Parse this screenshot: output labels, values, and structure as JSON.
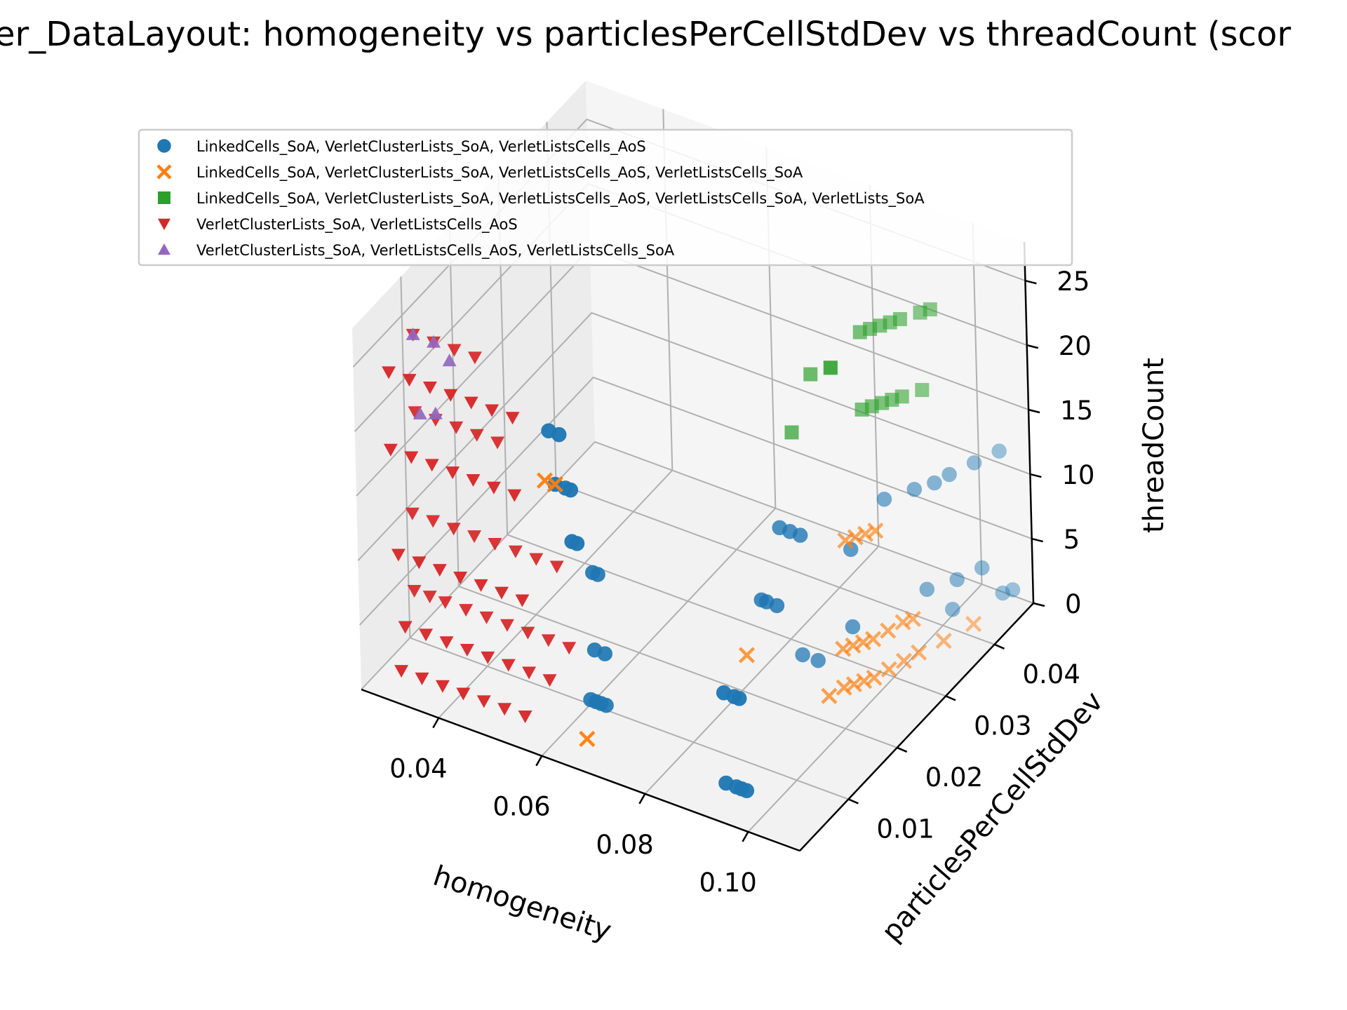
{
  "chart_data": {
    "type": "scatter",
    "projection": "3d",
    "title": "er_DataLayout: homogeneity vs particlesPerCellStdDev vs threadCount (scor",
    "xlabel": "homogeneity",
    "ylabel": "particlesPerCellStdDev",
    "zlabel": "threadCount",
    "xlim": [
      0.025,
      0.11
    ],
    "ylim": [
      0.0,
      0.048
    ],
    "zlim": [
      0,
      28
    ],
    "xticks": [
      "0.04",
      "0.06",
      "0.08",
      "0.10"
    ],
    "yticks": [
      "0.01",
      "0.02",
      "0.03",
      "0.04"
    ],
    "zticks": [
      "0",
      "5",
      "10",
      "15",
      "20",
      "25"
    ],
    "grid": true,
    "legend_position": "top",
    "series": [
      {
        "name": "LinkedCells_SoA, VerletClusterLists_SoA, VerletListsCells_AoS",
        "marker": "circle",
        "color": "#1f77b4",
        "points": [
          [
            0.092,
            0.004,
            1
          ],
          [
            0.094,
            0.004,
            1
          ],
          [
            0.095,
            0.004,
            1
          ],
          [
            0.096,
            0.004,
            1
          ],
          [
            0.092,
            0.004,
            8
          ],
          [
            0.094,
            0.004,
            8
          ],
          [
            0.095,
            0.004,
            8
          ],
          [
            0.092,
            0.012,
            12
          ],
          [
            0.093,
            0.012,
            12
          ],
          [
            0.095,
            0.012,
            12
          ],
          [
            0.092,
            0.016,
            16
          ],
          [
            0.094,
            0.016,
            16
          ],
          [
            0.096,
            0.016,
            16
          ],
          [
            0.063,
            0.007,
            2
          ],
          [
            0.064,
            0.007,
            2
          ],
          [
            0.065,
            0.007,
            2
          ],
          [
            0.066,
            0.007,
            2
          ],
          [
            0.064,
            0.007,
            6
          ],
          [
            0.066,
            0.007,
            6
          ],
          [
            0.064,
            0.007,
            12
          ],
          [
            0.065,
            0.007,
            12
          ],
          [
            0.06,
            0.003,
            24
          ],
          [
            0.062,
            0.003,
            24
          ],
          [
            0.061,
            0.003,
            20
          ],
          [
            0.063,
            0.003,
            20
          ],
          [
            0.064,
            0.003,
            20
          ],
          [
            0.064,
            0.003,
            16
          ],
          [
            0.065,
            0.003,
            16
          ],
          [
            0.091,
            0.021,
            4
          ],
          [
            0.094,
            0.021,
            4
          ],
          [
            0.098,
            0.024,
            6
          ],
          [
            0.098,
            0.024,
            12
          ],
          [
            0.096,
            0.033,
            12
          ],
          [
            0.099,
            0.036,
            12
          ],
          [
            0.101,
            0.038,
            12
          ],
          [
            0.102,
            0.04,
            12
          ],
          [
            0.104,
            0.043,
            12
          ],
          [
            0.106,
            0.046,
            12
          ],
          [
            0.1,
            0.037,
            4
          ],
          [
            0.103,
            0.04,
            4
          ],
          [
            0.105,
            0.043,
            4
          ],
          [
            0.101,
            0.041,
            1
          ],
          [
            0.106,
            0.046,
            1
          ],
          [
            0.107,
            0.047,
            1
          ]
        ]
      },
      {
        "name": "LinkedCells_SoA, VerletClusterLists_SoA, VerletListsCells_AoS, VerletListsCells_SoA",
        "marker": "x",
        "color": "#ff7f0e",
        "points": [
          [
            0.066,
            0.003,
            1
          ],
          [
            0.059,
            0.003,
            20
          ],
          [
            0.061,
            0.003,
            20
          ],
          [
            0.095,
            0.022,
            1
          ],
          [
            0.096,
            0.024,
            1
          ],
          [
            0.097,
            0.025,
            1
          ],
          [
            0.098,
            0.026,
            1
          ],
          [
            0.099,
            0.027,
            1
          ],
          [
            0.1,
            0.029,
            1
          ],
          [
            0.101,
            0.031,
            1
          ],
          [
            0.102,
            0.033,
            1
          ],
          [
            0.104,
            0.036,
            1
          ],
          [
            0.106,
            0.04,
            1
          ],
          [
            0.096,
            0.024,
            4
          ],
          [
            0.097,
            0.025,
            4
          ],
          [
            0.098,
            0.026,
            4
          ],
          [
            0.099,
            0.027,
            4
          ],
          [
            0.1,
            0.029,
            4
          ],
          [
            0.101,
            0.031,
            4
          ],
          [
            0.102,
            0.032,
            4
          ],
          [
            0.096,
            0.025,
            12
          ],
          [
            0.097,
            0.026,
            12
          ],
          [
            0.098,
            0.027,
            12
          ],
          [
            0.099,
            0.028,
            12
          ],
          [
            0.083,
            0.018,
            4
          ]
        ]
      },
      {
        "name": "LinkedCells_SoA, VerletClusterLists_SoA, VerletListsCells_AoS, VerletListsCells_SoA, VerletLists_SoA",
        "marker": "square",
        "color": "#2ca02c",
        "points": [
          [
            0.095,
            0.03,
            20
          ],
          [
            0.096,
            0.031,
            20
          ],
          [
            0.097,
            0.032,
            20
          ],
          [
            0.098,
            0.033,
            20
          ],
          [
            0.099,
            0.034,
            20
          ],
          [
            0.101,
            0.036,
            20
          ],
          [
            0.095,
            0.03,
            26
          ],
          [
            0.096,
            0.031,
            26
          ],
          [
            0.097,
            0.032,
            26
          ],
          [
            0.098,
            0.033,
            26
          ],
          [
            0.099,
            0.034,
            26
          ],
          [
            0.101,
            0.036,
            26
          ],
          [
            0.102,
            0.037,
            26
          ],
          [
            0.092,
            0.027,
            24
          ],
          [
            0.09,
            0.025,
            24
          ],
          [
            0.092,
            0.027,
            24
          ],
          [
            0.088,
            0.023,
            20
          ]
        ]
      },
      {
        "name": "VerletClusterLists_SoA, VerletListsCells_AoS",
        "marker": "triangle-down",
        "color": "#d62728",
        "points": [
          [
            0.03,
            0.003,
            1
          ],
          [
            0.034,
            0.003,
            1
          ],
          [
            0.038,
            0.003,
            1
          ],
          [
            0.042,
            0.003,
            1
          ],
          [
            0.046,
            0.003,
            1
          ],
          [
            0.05,
            0.003,
            1
          ],
          [
            0.054,
            0.003,
            1
          ],
          [
            0.03,
            0.004,
            4
          ],
          [
            0.034,
            0.004,
            4
          ],
          [
            0.038,
            0.004,
            4
          ],
          [
            0.042,
            0.004,
            4
          ],
          [
            0.046,
            0.004,
            4
          ],
          [
            0.05,
            0.004,
            4
          ],
          [
            0.054,
            0.004,
            4
          ],
          [
            0.058,
            0.004,
            4
          ],
          [
            0.03,
            0.006,
            6
          ],
          [
            0.033,
            0.006,
            6
          ],
          [
            0.036,
            0.006,
            6
          ],
          [
            0.04,
            0.006,
            6
          ],
          [
            0.044,
            0.006,
            6
          ],
          [
            0.048,
            0.006,
            6
          ],
          [
            0.052,
            0.006,
            6
          ],
          [
            0.056,
            0.006,
            6
          ],
          [
            0.06,
            0.006,
            6
          ],
          [
            0.03,
            0.003,
            10
          ],
          [
            0.034,
            0.003,
            10
          ],
          [
            0.038,
            0.003,
            10
          ],
          [
            0.042,
            0.003,
            10
          ],
          [
            0.046,
            0.003,
            10
          ],
          [
            0.05,
            0.003,
            10
          ],
          [
            0.054,
            0.003,
            10
          ],
          [
            0.03,
            0.006,
            12
          ],
          [
            0.034,
            0.006,
            12
          ],
          [
            0.038,
            0.006,
            12
          ],
          [
            0.042,
            0.006,
            12
          ],
          [
            0.046,
            0.006,
            12
          ],
          [
            0.05,
            0.006,
            12
          ],
          [
            0.054,
            0.006,
            12
          ],
          [
            0.058,
            0.006,
            12
          ],
          [
            0.029,
            0.003,
            18
          ],
          [
            0.033,
            0.003,
            18
          ],
          [
            0.037,
            0.003,
            18
          ],
          [
            0.041,
            0.003,
            18
          ],
          [
            0.045,
            0.003,
            18
          ],
          [
            0.049,
            0.003,
            18
          ],
          [
            0.053,
            0.003,
            18
          ],
          [
            0.031,
            0.006,
            20
          ],
          [
            0.035,
            0.006,
            20
          ],
          [
            0.039,
            0.006,
            20
          ],
          [
            0.043,
            0.006,
            20
          ],
          [
            0.047,
            0.006,
            20
          ],
          [
            0.029,
            0.003,
            24
          ],
          [
            0.033,
            0.003,
            24
          ],
          [
            0.037,
            0.003,
            24
          ],
          [
            0.041,
            0.003,
            24
          ],
          [
            0.045,
            0.003,
            24
          ],
          [
            0.049,
            0.003,
            24
          ],
          [
            0.053,
            0.003,
            24
          ],
          [
            0.031,
            0.006,
            26
          ],
          [
            0.035,
            0.006,
            26
          ],
          [
            0.039,
            0.006,
            26
          ],
          [
            0.043,
            0.006,
            26
          ]
        ]
      },
      {
        "name": "VerletClusterLists_SoA, VerletListsCells_AoS, VerletListsCells_SoA",
        "marker": "triangle-up",
        "color": "#9467bd",
        "points": [
          [
            0.031,
            0.006,
            26
          ],
          [
            0.035,
            0.006,
            26
          ],
          [
            0.038,
            0.006,
            25
          ],
          [
            0.032,
            0.006,
            20
          ],
          [
            0.036,
            0.005,
            21
          ]
        ]
      }
    ]
  }
}
